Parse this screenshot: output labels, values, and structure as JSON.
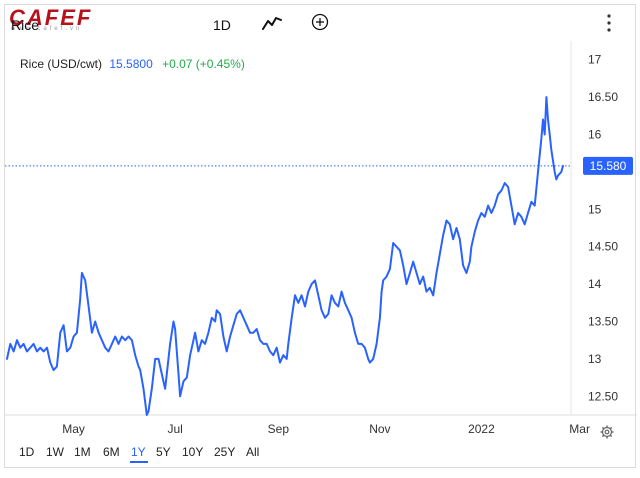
{
  "header": {
    "logo_text": "CAFEF",
    "logo_sub": "www.cafef.vn",
    "symbol": "Rice",
    "interval": "1D",
    "icons": {
      "chart_type": "line-chart-icon",
      "add_indicator": "plus-circle-icon",
      "more": "more-vertical-icon"
    }
  },
  "legend": {
    "name": "Rice (USD/cwt)",
    "price": "15.5800",
    "change": "+0.07 (+0.45%)"
  },
  "colors": {
    "line": "#2962ff",
    "up": "#22ab4a",
    "price_label_bg": "#2962ff",
    "grid": "#e6e6e6"
  },
  "ranges": [
    "1D",
    "1W",
    "1M",
    "6M",
    "1Y",
    "5Y",
    "10Y",
    "25Y",
    "All"
  ],
  "active_range": "1Y",
  "settings_icon": "gear-icon",
  "chart_data": {
    "type": "line",
    "title": "",
    "xlabel": "",
    "ylabel": "",
    "ylim": [
      12.25,
      17.25
    ],
    "y_ticks": [
      "12.50",
      "13",
      "13.50",
      "14",
      "14.50",
      "15",
      "15.580",
      "16",
      "16.50",
      "17"
    ],
    "x_ticks": [
      {
        "label": "May",
        "x": 40
      },
      {
        "label": "Jul",
        "x": 101
      },
      {
        "label": "Sep",
        "x": 163
      },
      {
        "label": "Nov",
        "x": 224
      },
      {
        "label": "2022",
        "x": 285
      },
      {
        "label": "Mar",
        "x": 344
      }
    ],
    "last_price_label": "15.580",
    "series": [
      {
        "values": [
          [
            0,
            13.0
          ],
          [
            2,
            13.2
          ],
          [
            4,
            13.1
          ],
          [
            6,
            13.25
          ],
          [
            8,
            13.15
          ],
          [
            10,
            13.2
          ],
          [
            12,
            13.1
          ],
          [
            14,
            13.15
          ],
          [
            16,
            13.2
          ],
          [
            18,
            13.1
          ],
          [
            20,
            13.15
          ],
          [
            22,
            13.1
          ],
          [
            24,
            13.15
          ],
          [
            26,
            12.95
          ],
          [
            28,
            12.85
          ],
          [
            30,
            12.9
          ],
          [
            32,
            13.35
          ],
          [
            34,
            13.45
          ],
          [
            36,
            13.1
          ],
          [
            38,
            13.15
          ],
          [
            40,
            13.3
          ],
          [
            42,
            13.35
          ],
          [
            44,
            13.8
          ],
          [
            45,
            14.15
          ],
          [
            47,
            14.05
          ],
          [
            49,
            13.7
          ],
          [
            51,
            13.35
          ],
          [
            53,
            13.5
          ],
          [
            55,
            13.35
          ],
          [
            57,
            13.25
          ],
          [
            59,
            13.15
          ],
          [
            61,
            13.1
          ],
          [
            63,
            13.2
          ],
          [
            65,
            13.3
          ],
          [
            67,
            13.2
          ],
          [
            69,
            13.3
          ],
          [
            71,
            13.25
          ],
          [
            73,
            13.3
          ],
          [
            75,
            13.25
          ],
          [
            77,
            13.05
          ],
          [
            79,
            12.9
          ],
          [
            80,
            12.85
          ],
          [
            82,
            12.6
          ],
          [
            84,
            12.25
          ],
          [
            85,
            12.3
          ],
          [
            87,
            12.6
          ],
          [
            89,
            13.0
          ],
          [
            91,
            13.0
          ],
          [
            93,
            12.8
          ],
          [
            95,
            12.6
          ],
          [
            96,
            12.8
          ],
          [
            98,
            13.2
          ],
          [
            100,
            13.5
          ],
          [
            101,
            13.4
          ],
          [
            103,
            12.8
          ],
          [
            104,
            12.5
          ],
          [
            106,
            12.7
          ],
          [
            108,
            12.75
          ],
          [
            110,
            13.05
          ],
          [
            111,
            13.15
          ],
          [
            113,
            13.35
          ],
          [
            115,
            13.1
          ],
          [
            117,
            13.25
          ],
          [
            119,
            13.2
          ],
          [
            121,
            13.35
          ],
          [
            123,
            13.55
          ],
          [
            125,
            13.5
          ],
          [
            126,
            13.65
          ],
          [
            128,
            13.6
          ],
          [
            130,
            13.3
          ],
          [
            132,
            13.1
          ],
          [
            134,
            13.3
          ],
          [
            136,
            13.45
          ],
          [
            138,
            13.6
          ],
          [
            140,
            13.65
          ],
          [
            142,
            13.55
          ],
          [
            144,
            13.45
          ],
          [
            146,
            13.35
          ],
          [
            148,
            13.35
          ],
          [
            150,
            13.4
          ],
          [
            152,
            13.25
          ],
          [
            154,
            13.2
          ],
          [
            156,
            13.2
          ],
          [
            158,
            13.1
          ],
          [
            160,
            13.05
          ],
          [
            162,
            13.15
          ],
          [
            164,
            12.95
          ],
          [
            166,
            13.05
          ],
          [
            168,
            13.0
          ],
          [
            169,
            13.2
          ],
          [
            171,
            13.55
          ],
          [
            173,
            13.85
          ],
          [
            175,
            13.75
          ],
          [
            177,
            13.85
          ],
          [
            179,
            13.7
          ],
          [
            181,
            13.9
          ],
          [
            183,
            14.0
          ],
          [
            185,
            14.05
          ],
          [
            187,
            13.85
          ],
          [
            189,
            13.65
          ],
          [
            191,
            13.55
          ],
          [
            193,
            13.6
          ],
          [
            195,
            13.85
          ],
          [
            197,
            13.75
          ],
          [
            199,
            13.7
          ],
          [
            201,
            13.9
          ],
          [
            203,
            13.75
          ],
          [
            205,
            13.65
          ],
          [
            207,
            13.55
          ],
          [
            209,
            13.35
          ],
          [
            211,
            13.2
          ],
          [
            213,
            13.2
          ],
          [
            215,
            13.15
          ],
          [
            217,
            13.0
          ],
          [
            218,
            12.95
          ],
          [
            220,
            13.0
          ],
          [
            222,
            13.2
          ],
          [
            224,
            13.55
          ],
          [
            225,
            13.9
          ],
          [
            226,
            14.05
          ],
          [
            228,
            14.1
          ],
          [
            230,
            14.2
          ],
          [
            232,
            14.55
          ],
          [
            234,
            14.5
          ],
          [
            236,
            14.45
          ],
          [
            238,
            14.25
          ],
          [
            240,
            14.0
          ],
          [
            242,
            14.15
          ],
          [
            244,
            14.3
          ],
          [
            246,
            14.15
          ],
          [
            248,
            14.0
          ],
          [
            250,
            14.1
          ],
          [
            252,
            13.9
          ],
          [
            254,
            13.95
          ],
          [
            256,
            13.85
          ],
          [
            258,
            14.15
          ],
          [
            260,
            14.4
          ],
          [
            262,
            14.65
          ],
          [
            264,
            14.85
          ],
          [
            266,
            14.8
          ],
          [
            268,
            14.6
          ],
          [
            270,
            14.75
          ],
          [
            272,
            14.6
          ],
          [
            274,
            14.25
          ],
          [
            276,
            14.15
          ],
          [
            278,
            14.3
          ],
          [
            279,
            14.5
          ],
          [
            281,
            14.7
          ],
          [
            283,
            14.85
          ],
          [
            285,
            14.95
          ],
          [
            287,
            14.9
          ],
          [
            289,
            15.05
          ],
          [
            291,
            14.95
          ],
          [
            293,
            15.05
          ],
          [
            295,
            15.2
          ],
          [
            297,
            15.25
          ],
          [
            299,
            15.35
          ],
          [
            301,
            15.3
          ],
          [
            303,
            15.05
          ],
          [
            305,
            14.8
          ],
          [
            307,
            14.95
          ],
          [
            309,
            14.9
          ],
          [
            311,
            14.8
          ],
          [
            313,
            14.95
          ],
          [
            315,
            15.1
          ],
          [
            317,
            15.05
          ],
          [
            319,
            15.5
          ],
          [
            321,
            15.95
          ],
          [
            322,
            16.2
          ],
          [
            323,
            16.0
          ],
          [
            324,
            16.5
          ],
          [
            325,
            16.2
          ],
          [
            326,
            16.0
          ],
          [
            327,
            15.8
          ],
          [
            328,
            15.65
          ],
          [
            329,
            15.5
          ],
          [
            330,
            15.4
          ],
          [
            331,
            15.45
          ],
          [
            333,
            15.5
          ],
          [
            334,
            15.58
          ]
        ]
      }
    ]
  }
}
